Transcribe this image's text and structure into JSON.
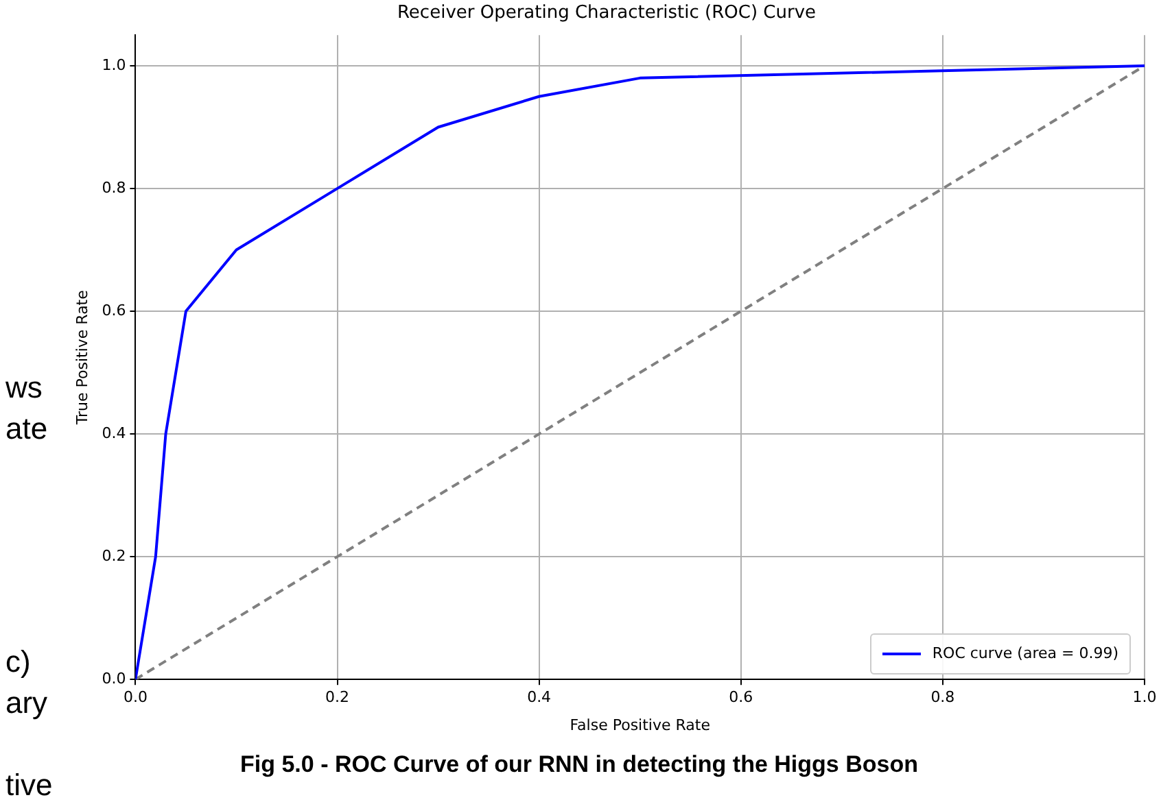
{
  "chart_data": {
    "type": "line",
    "title": "Receiver Operating Characteristic (ROC) Curve",
    "xlabel": "False Positive Rate",
    "ylabel": "True Positive Rate",
    "series": [
      {
        "name": "ROC curve (area = 0.99)",
        "color": "#0000ff",
        "line_style": "solid",
        "x": [
          0,
          0.02,
          0.03,
          0.05,
          0.1,
          0.3,
          0.4,
          0.5,
          1.0
        ],
        "values": [
          0,
          0.2,
          0.4,
          0.6,
          0.7,
          0.9,
          0.95,
          0.98,
          1.0
        ]
      },
      {
        "color": "#808080",
        "line_style": "dashed",
        "x": [
          0,
          1.0
        ],
        "values": [
          0,
          1.0
        ]
      }
    ],
    "xlim": [
      0,
      1.0
    ],
    "ylim": [
      0,
      1.05
    ],
    "xticks": [
      {
        "value": 0,
        "label": "0.0"
      },
      0.2,
      0.4,
      0.6,
      0.8,
      {
        "value": 1.0,
        "label": "1.0"
      }
    ],
    "yticks": [
      {
        "value": 0,
        "label": "0.0"
      },
      0.2,
      0.4,
      0.6,
      0.8,
      {
        "value": 1.0,
        "label": "1.0"
      }
    ],
    "grid": true,
    "legend": "bottom right",
    "marker": "none",
    "annotations": [
      "Fig 5.0 - ROC Curve of our RNN in detecting the Higgs Boson",
      "ws",
      "ate",
      "c)",
      "ary",
      "tive"
    ]
  }
}
